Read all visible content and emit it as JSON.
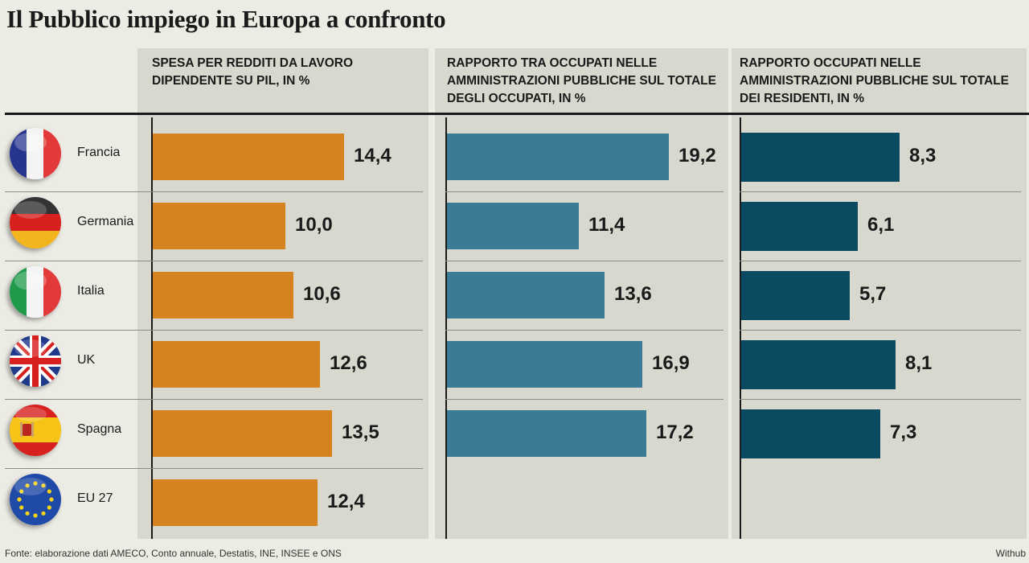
{
  "title": "Il Pubblico impiego in Europa a confronto",
  "countries": [
    "Francia",
    "Germania",
    "Italia",
    "UK",
    "Spagna",
    "EU 27"
  ],
  "flags": [
    "france-flag-icon",
    "germany-flag-icon",
    "italy-flag-icon",
    "uk-flag-icon",
    "spain-flag-icon",
    "eu-flag-icon"
  ],
  "colors": {
    "panel1": "#d4831f",
    "panel2": "#3a7b95",
    "panel3": "#0c4a62"
  },
  "chart_data": [
    {
      "type": "bar",
      "title": "SPESA PER REDDITI DA LAVORO DIPENDENTE SU PIL, IN %",
      "categories": [
        "Francia",
        "Germania",
        "Italia",
        "UK",
        "Spagna",
        "EU 27"
      ],
      "values": [
        14.4,
        10.0,
        10.6,
        12.6,
        13.5,
        12.4
      ],
      "labels": [
        "14,4",
        "10,0",
        "10,6",
        "12,6",
        "13,5",
        "12,4"
      ],
      "orientation": "horizontal",
      "color": "#d4831f"
    },
    {
      "type": "bar",
      "title": "RAPPORTO TRA OCCUPATI NELLE AMMINISTRAZIONI PUBBLICHE SUL TOTALE DEGLI OCCUPATI, IN %",
      "categories": [
        "Francia",
        "Germania",
        "Italia",
        "UK",
        "Spagna"
      ],
      "values": [
        19.2,
        11.4,
        13.6,
        16.9,
        17.2
      ],
      "labels": [
        "19,2",
        "11,4",
        "13,6",
        "16,9",
        "17,2"
      ],
      "orientation": "horizontal",
      "color": "#3a7b95"
    },
    {
      "type": "bar",
      "title": "RAPPORTO OCCUPATI NELLE AMMINISTRAZIONI PUBBLICHE SUL TOTALE DEI RESIDENTI, IN %",
      "categories": [
        "Francia",
        "Germania",
        "Italia",
        "UK",
        "Spagna"
      ],
      "values": [
        8.3,
        6.1,
        5.7,
        8.1,
        7.3
      ],
      "labels": [
        "8,3",
        "6,1",
        "5,7",
        "8,1",
        "7,3"
      ],
      "orientation": "horizontal",
      "color": "#0c4a62"
    }
  ],
  "footer": {
    "source": "Fonte: elaborazione dati AMECO, Conto annuale, Destatis, INE, INSEE e ONS",
    "credit": "Withub"
  }
}
